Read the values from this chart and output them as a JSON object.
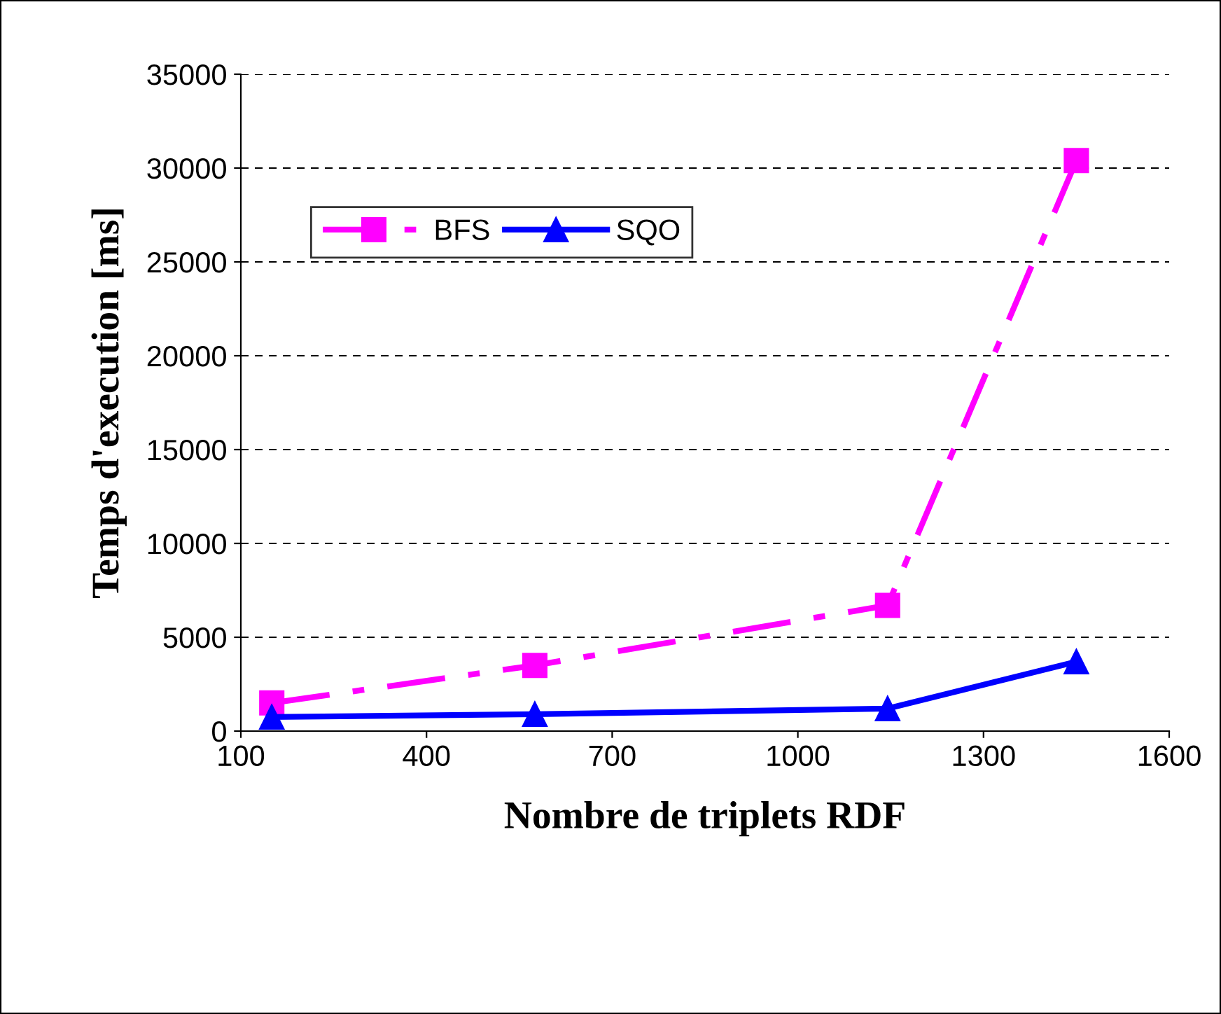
{
  "chart_data": {
    "type": "line",
    "xlabel": "Nombre de triplets RDF",
    "ylabel": "Temps d'execution [ms]",
    "xlim": [
      100,
      1600
    ],
    "xticks": [
      100,
      400,
      700,
      1000,
      1300,
      1600
    ],
    "ylim": [
      0,
      35000
    ],
    "yticks": [
      0,
      5000,
      10000,
      15000,
      20000,
      25000,
      30000,
      35000
    ],
    "grid": "y",
    "legend": "top left",
    "series": [
      {
        "name": "BFS",
        "color": "#ff00ff",
        "x": [
          150,
          575,
          1145,
          1450
        ],
        "values": [
          1500,
          3500,
          6700,
          30400
        ],
        "marker": "square",
        "line_style": "dashed"
      },
      {
        "name": "SQO",
        "color": "#0000ff",
        "x": [
          150,
          575,
          1145,
          1450
        ],
        "values": [
          750,
          900,
          1200,
          3700
        ],
        "marker": "triangle",
        "line_style": "solid"
      }
    ]
  }
}
